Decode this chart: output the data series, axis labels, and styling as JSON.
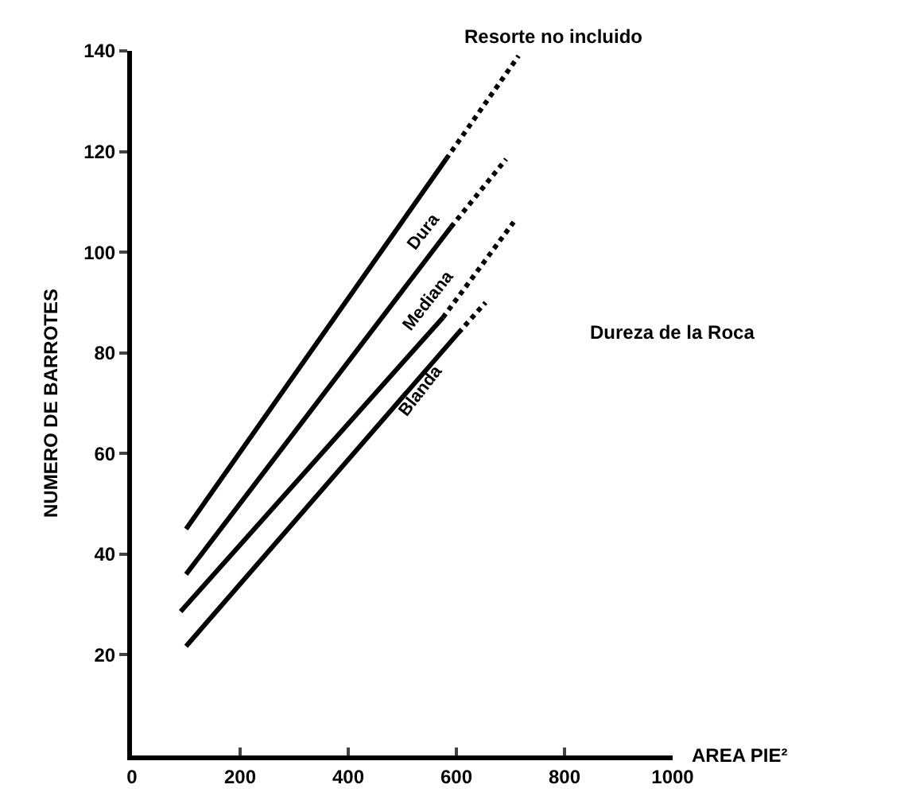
{
  "chart_data": {
    "type": "line",
    "xlabel": "AREA PIE²",
    "ylabel": "NUMERO DE BARROTES",
    "xlim": [
      0,
      1000
    ],
    "xticks": [
      0,
      200,
      400,
      600,
      800,
      1000
    ],
    "ylim": [
      0,
      140
    ],
    "yticks": [
      20,
      40,
      60,
      80,
      100,
      120,
      140
    ],
    "grid": false,
    "legend": false,
    "marker": "none",
    "line_style": "solid",
    "series": [
      {
        "name": "Dura",
        "color": "#000000",
        "x": [
          100,
          581
        ],
        "values": [
          45,
          118.5
        ]
      },
      {
        "name": "Mediana",
        "color": "#000000",
        "x": [
          100,
          590
        ],
        "values": [
          36,
          105
        ]
      },
      {
        "name": "Blanda",
        "color": "#000000",
        "x": [
          90,
          575
        ],
        "values": [
          28.6,
          87
        ]
      },
      {
        "color": "#000000",
        "x": [
          100,
          604
        ],
        "values": [
          21.7,
          84
        ]
      },
      {
        "color": "#000000",
        "type": "line",
        "line_style": "dotted",
        "x": [
          581,
          715
        ],
        "values": [
          118.5,
          139
        ]
      },
      {
        "color": "#000000",
        "type": "line",
        "line_style": "dotted",
        "x": [
          590,
          692
        ],
        "values": [
          105,
          118.5
        ]
      },
      {
        "color": "#000000",
        "type": "line",
        "line_style": "dotted",
        "x": [
          575,
          706
        ],
        "values": [
          87,
          106
        ]
      },
      {
        "color": "#000000",
        "type": "line",
        "line_style": "dotted",
        "x": [
          604,
          654
        ],
        "values": [
          84,
          90
        ]
      }
    ],
    "annotations": [
      "Resorte no incluido",
      "Dureza de la Roca"
    ]
  }
}
